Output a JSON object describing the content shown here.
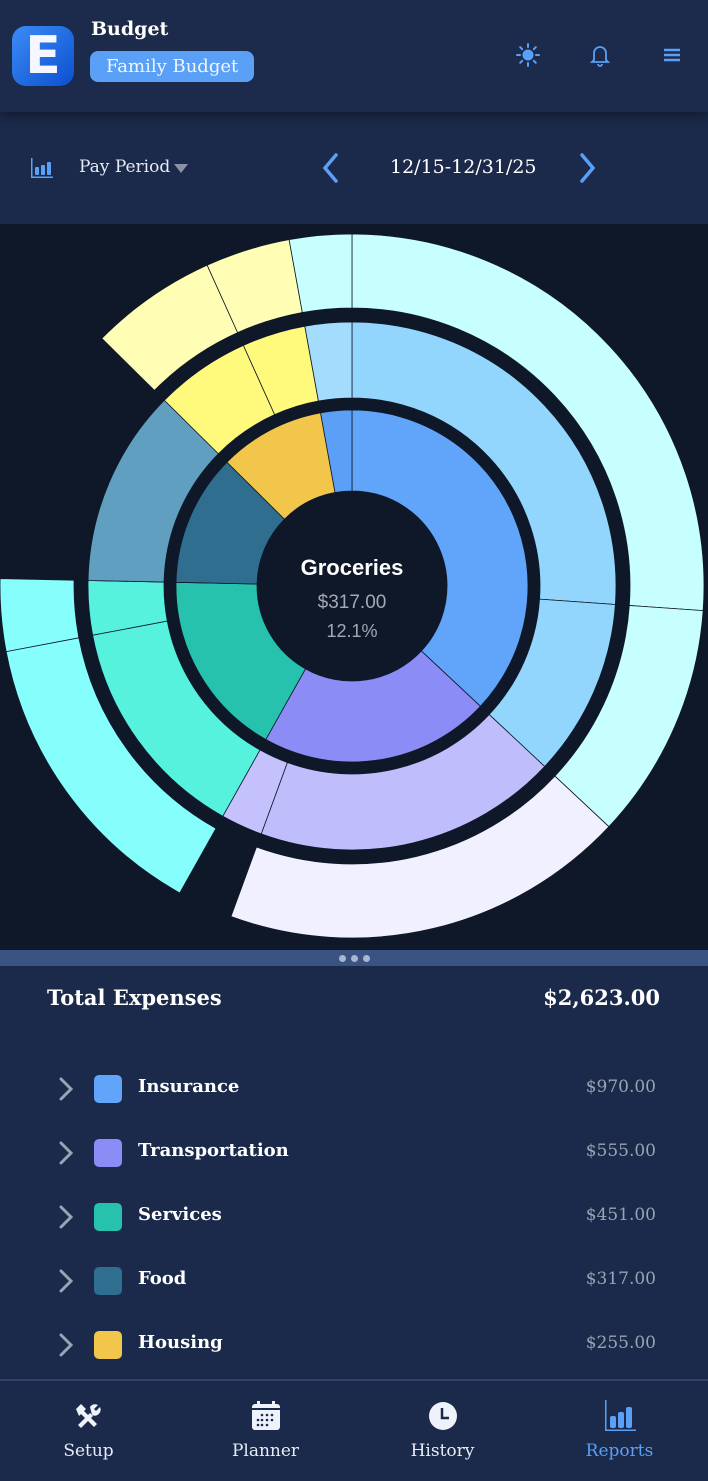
{
  "header": {
    "title": "Budget",
    "logo_letter": "E",
    "budget_name": "Family Budget",
    "icons": [
      "sun-icon",
      "bell-icon",
      "menu-icon"
    ]
  },
  "toolbar": {
    "period_label": "Pay Period",
    "date_range": "12/15-12/31/25"
  },
  "chart_data": {
    "type": "sunburst",
    "center": {
      "label": "Groceries",
      "amount": "$317.00",
      "percent": "12.1%"
    },
    "total": 2623,
    "inner": [
      {
        "name": "Insurance",
        "value": 970,
        "color": "#60a5fa"
      },
      {
        "name": "Transportation",
        "value": 555,
        "color": "#8b8cf6"
      },
      {
        "name": "Services",
        "value": 451,
        "color": "#26c2ad"
      },
      {
        "name": "Food",
        "value": 317,
        "color": "#2f6e8f"
      },
      {
        "name": "Housing",
        "value": 255,
        "color": "#f2c64a"
      },
      {
        "value": 75,
        "color": "#5c9ff7"
      }
    ],
    "middle": [
      {
        "value": 685,
        "color": "#93d6fd"
      },
      {
        "value": 285,
        "color": "#93d6fd"
      },
      {
        "value": 488,
        "color": "#c0bdfd"
      },
      {
        "value": 67,
        "color": "#c4c1fc"
      },
      {
        "value": 364,
        "color": "#56f2de"
      },
      {
        "value": 87,
        "color": "#56f2de"
      },
      {
        "value": 317,
        "color": "#609fbf"
      },
      {
        "value": 153,
        "color": "#fffa7c"
      },
      {
        "value": 102,
        "color": "#fffa7c"
      },
      {
        "value": 75,
        "color": "#a3dcfd"
      }
    ],
    "outer": [
      {
        "value": 685,
        "color": "#c6fffe"
      },
      {
        "value": 285,
        "color": "#c6fffe"
      },
      {
        "value": 488,
        "color": "#f0f0fe"
      },
      {
        "value": 67,
        "color": null
      },
      {
        "value": 364,
        "color": "#86fffc"
      },
      {
        "value": 87,
        "color": "#86fffc"
      },
      {
        "value": 317,
        "color": null
      },
      {
        "value": 153,
        "color": "#fffeb4"
      },
      {
        "value": 102,
        "color": "#fffeb4"
      },
      {
        "value": 75,
        "color": "#c6fffe"
      }
    ]
  },
  "summary": {
    "label": "Total Expenses",
    "value": "$2,623.00"
  },
  "categories": [
    {
      "name": "Insurance",
      "amount": "$970.00",
      "color": "#60a5fa"
    },
    {
      "name": "Transportation",
      "amount": "$555.00",
      "color": "#8b8cf6"
    },
    {
      "name": "Services",
      "amount": "$451.00",
      "color": "#26c2ad"
    },
    {
      "name": "Food",
      "amount": "$317.00",
      "color": "#2f6e8f"
    },
    {
      "name": "Housing",
      "amount": "$255.00",
      "color": "#f2c64a"
    }
  ],
  "nav": [
    {
      "label": "Setup",
      "icon": "tools-icon"
    },
    {
      "label": "Planner",
      "icon": "calendar-icon"
    },
    {
      "label": "History",
      "icon": "clock-icon"
    },
    {
      "label": "Reports",
      "icon": "bar-chart-icon",
      "active": true
    }
  ],
  "colors": {
    "accent": "#5aa0f6",
    "background": "#1b2a4a",
    "chart_bg": "#0f1828"
  }
}
